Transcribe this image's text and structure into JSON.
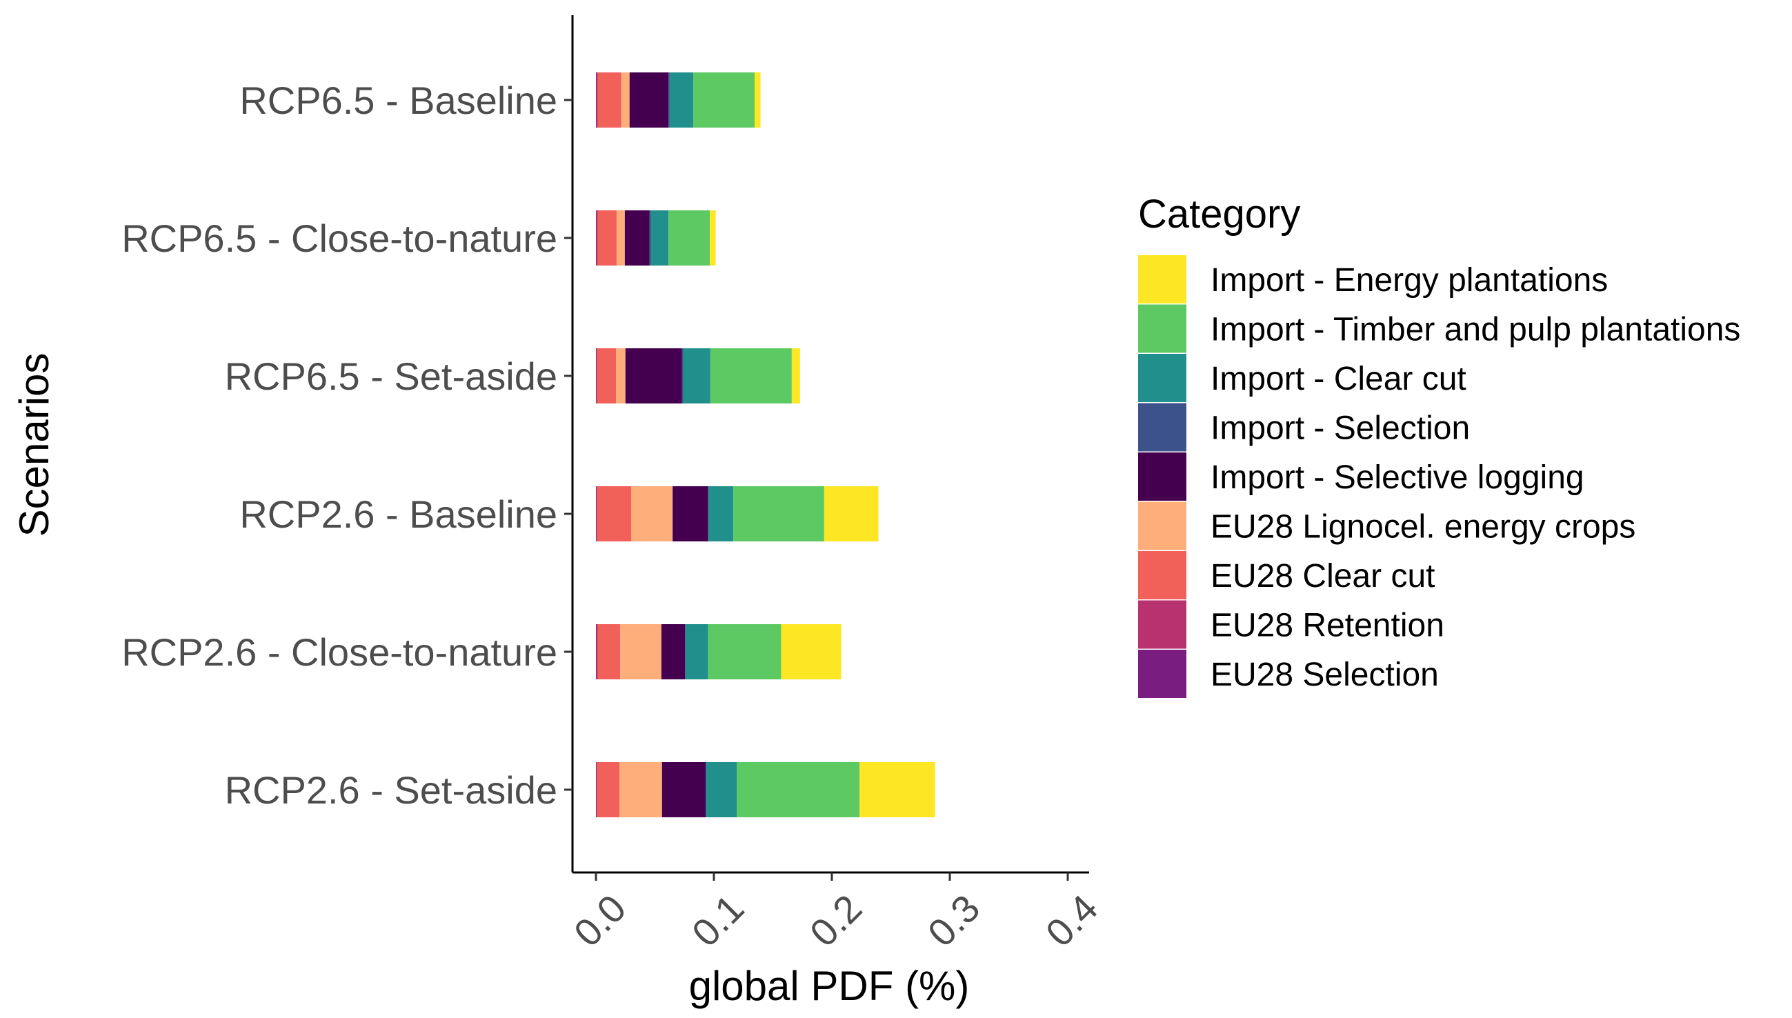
{
  "chart_data": {
    "type": "bar",
    "orientation": "horizontal",
    "stacked": true,
    "title": "",
    "xlabel": "global PDF (%)",
    "ylabel": "Scenarios",
    "xlim": [
      0,
      0.4
    ],
    "x_ticks": [
      "0.0",
      "0.1",
      "0.2",
      "0.3",
      "0.4"
    ],
    "grid": false,
    "legend_position": "right",
    "legend_title": "Category",
    "categories": [
      "RCP6.5 - Baseline",
      "RCP6.5 - Close-to-nature",
      "RCP6.5 - Set-aside",
      "RCP2.6 - Baseline",
      "RCP2.6 - Close-to-nature",
      "RCP2.6 - Set-aside"
    ],
    "series": [
      {
        "name": "EU28 Selection",
        "color": "#7a1d80",
        "values": [
          0.0005,
          0.0005,
          0.0005,
          0.0005,
          0.0005,
          0.0005
        ]
      },
      {
        "name": "EU28 Retention",
        "color": "#b8326f",
        "values": [
          0.001,
          0.001,
          0.0005,
          0.0005,
          0.001,
          0.0005
        ]
      },
      {
        "name": "EU28 Clear cut",
        "color": "#f2605a",
        "values": [
          0.02,
          0.016,
          0.016,
          0.029,
          0.019,
          0.019
        ]
      },
      {
        "name": "EU28 Lignocel. energy crops",
        "color": "#fdae7b",
        "values": [
          0.007,
          0.007,
          0.008,
          0.035,
          0.035,
          0.036
        ]
      },
      {
        "name": "Import - Selective logging",
        "color": "#44004f",
        "values": [
          0.033,
          0.021,
          0.048,
          0.03,
          0.02,
          0.037
        ]
      },
      {
        "name": "Import - Selection",
        "color": "#3b528b",
        "values": [
          0.001,
          0.001,
          0.001,
          0.0005,
          0.0005,
          0.0005
        ]
      },
      {
        "name": "Import - Clear cut",
        "color": "#21908d",
        "values": [
          0.02,
          0.015,
          0.023,
          0.021,
          0.019,
          0.026
        ]
      },
      {
        "name": "Import - Timber and pulp plantations",
        "color": "#5dc963",
        "values": [
          0.052,
          0.035,
          0.069,
          0.077,
          0.062,
          0.104
        ]
      },
      {
        "name": "Import - Energy plantations",
        "color": "#fde725",
        "values": [
          0.005,
          0.005,
          0.007,
          0.046,
          0.051,
          0.064
        ]
      }
    ]
  }
}
